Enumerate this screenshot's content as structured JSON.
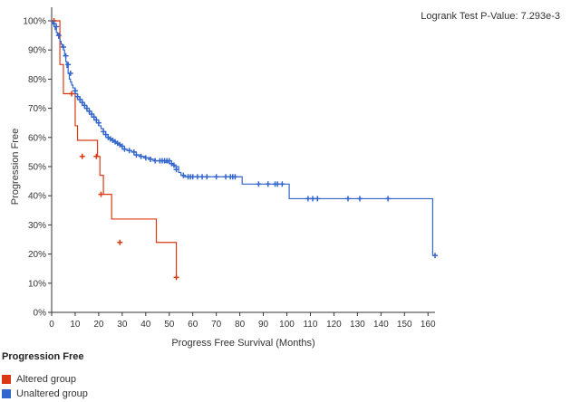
{
  "pvalue_text": "Logrank Test P-Value: 7.293e-3",
  "legend": {
    "title": "Progression Free",
    "items": [
      {
        "label": "Altered group",
        "color": "#dc3912"
      },
      {
        "label": "Unaltered group",
        "color": "#3366cc"
      }
    ]
  },
  "chart_data": {
    "type": "line",
    "xlabel": "Progress Free Survival (Months)",
    "ylabel": "Progression Free",
    "xlim": [
      0,
      163
    ],
    "ylim": [
      0,
      100
    ],
    "xticks": [
      0,
      10,
      20,
      30,
      40,
      50,
      60,
      70,
      80,
      90,
      100,
      110,
      120,
      130,
      140,
      150,
      160
    ],
    "xtick_labels": [
      "0",
      "10",
      "20",
      "30",
      "40",
      "50",
      "60",
      "70",
      "80",
      "90",
      "100",
      "110",
      "120",
      "130",
      "140",
      "150",
      "160"
    ],
    "yticks": [
      0,
      10,
      20,
      30,
      40,
      50,
      60,
      70,
      80,
      90,
      100
    ],
    "ytick_labels": [
      "0%",
      "10%",
      "20%",
      "30%",
      "40%",
      "50%",
      "60%",
      "70%",
      "80%",
      "90%",
      "100%"
    ],
    "grid": false,
    "series": [
      {
        "name": "Altered group",
        "color": "#dc3912",
        "step_x": [
          0,
          2,
          3.5,
          5,
          8.5,
          10,
          11,
          19.5,
          20.5,
          22,
          25.5,
          44.5,
          53
        ],
        "step_y": [
          100,
          100,
          85,
          75,
          75,
          64,
          59,
          53.5,
          47,
          40.5,
          32,
          24,
          12
        ],
        "censor_x": [
          1,
          8.5,
          13,
          19,
          21,
          29,
          53
        ],
        "censor_y": [
          100,
          75,
          53.5,
          53.5,
          40.5,
          24,
          12
        ]
      },
      {
        "name": "Unaltered group",
        "color": "#3366cc",
        "step_x": [
          0,
          0.5,
          1,
          1.5,
          2,
          2.5,
          3,
          3.5,
          4,
          4.5,
          5,
          5.5,
          6,
          6.5,
          7,
          7.5,
          8,
          8.5,
          9,
          10,
          11,
          12,
          13,
          14,
          15,
          16,
          17,
          18,
          19,
          20,
          21,
          22,
          23,
          24,
          25,
          26,
          27,
          28,
          29,
          30,
          32,
          34,
          36,
          38,
          40,
          42,
          44,
          46,
          48,
          50,
          52,
          54,
          55,
          56,
          60,
          64,
          70,
          76,
          81,
          88,
          96,
          101,
          110,
          120,
          140,
          162
        ],
        "step_y": [
          100,
          99,
          98,
          97,
          96,
          95,
          94,
          93,
          92,
          91,
          90,
          88,
          86,
          84,
          82,
          80,
          79,
          78,
          77,
          75,
          74,
          73,
          71,
          70,
          69,
          68,
          67,
          66,
          65,
          64,
          63,
          62,
          61,
          60,
          59.5,
          59,
          58.5,
          58,
          57,
          56,
          55.5,
          55,
          54,
          53.5,
          53,
          52.5,
          52,
          52,
          51.5,
          51,
          50,
          48,
          47,
          46.5,
          46.5,
          46.5,
          46.5,
          46.5,
          44,
          44,
          44,
          39,
          39,
          39,
          39,
          19.5
        ],
        "censor_x": [
          1,
          2,
          3,
          5,
          6,
          7,
          8,
          10,
          11,
          12,
          13,
          14,
          15,
          16,
          17,
          18,
          19,
          20,
          22,
          23,
          24,
          25,
          26,
          27,
          28,
          29,
          30,
          31,
          33,
          35,
          36,
          38,
          40,
          42,
          44,
          46,
          47,
          48,
          49,
          50,
          51,
          52,
          53,
          56,
          58,
          59,
          60,
          62,
          64,
          66,
          70,
          74,
          76,
          77,
          78,
          88,
          92,
          95,
          96,
          98,
          109,
          111,
          113,
          126,
          131,
          143,
          163
        ],
        "censor_y": [
          99,
          98,
          95,
          91,
          88,
          85,
          82,
          76,
          74,
          73,
          72,
          71,
          70,
          69,
          68,
          67,
          66,
          65,
          62,
          61,
          60,
          59.5,
          59,
          58.5,
          58,
          57.5,
          57,
          56,
          55.5,
          55,
          54,
          53.5,
          53,
          52.5,
          52,
          52,
          52,
          52,
          52,
          52,
          51,
          50.5,
          49,
          47,
          46.5,
          46.5,
          46.5,
          46.5,
          46.5,
          46.5,
          46.5,
          46.5,
          46.5,
          46.5,
          46.5,
          44,
          44,
          44,
          44,
          44,
          39,
          39,
          39,
          39,
          39,
          39,
          19.5
        ]
      }
    ]
  }
}
